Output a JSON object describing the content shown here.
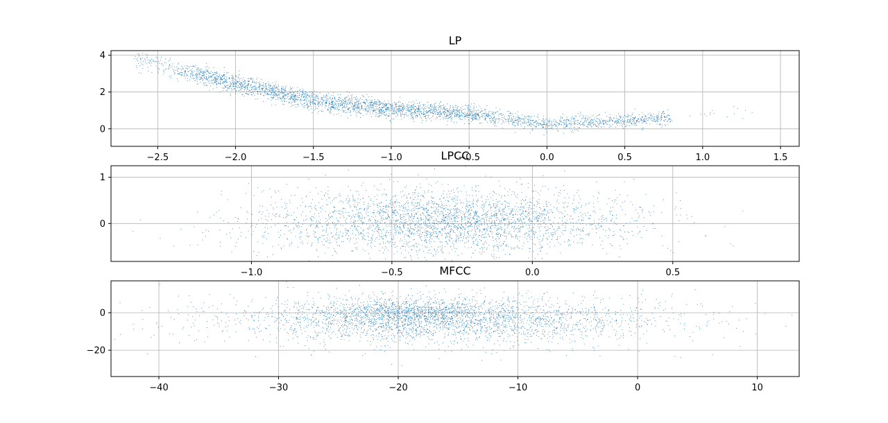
{
  "chart_data": [
    {
      "type": "scatter",
      "title": "LP",
      "xlabel": "",
      "ylabel": "",
      "xlim": [
        -2.8,
        1.62
      ],
      "ylim": [
        -0.95,
        4.25
      ],
      "xticks": [
        -2.5,
        -2.0,
        -1.5,
        -1.0,
        -0.5,
        0.0,
        0.5,
        1.0,
        1.5
      ],
      "xtick_labels": [
        "−2.5",
        "−2.0",
        "−1.5",
        "−1.0",
        "−0.5",
        "0.0",
        "0.5",
        "1.0",
        "1.5"
      ],
      "yticks": [
        0,
        2,
        4
      ],
      "ytick_labels": [
        "0",
        "2",
        "4"
      ],
      "grid": true,
      "marker_color": "#1f77b4",
      "point_count": 3500,
      "series": [
        {
          "name": "points",
          "description_trend": [
            [
              -2.6,
              3.7
            ],
            [
              -2.0,
              2.45
            ],
            [
              -1.5,
              1.5
            ],
            [
              -1.0,
              1.05
            ],
            [
              -0.5,
              0.85
            ],
            [
              0.0,
              0.25
            ],
            [
              0.5,
              0.45
            ],
            [
              1.2,
              0.8
            ]
          ]
        }
      ]
    },
    {
      "type": "scatter",
      "title": "LPCC",
      "xlabel": "",
      "ylabel": "",
      "xlim": [
        -1.5,
        0.95
      ],
      "ylim": [
        -0.82,
        1.25
      ],
      "xticks": [
        -1.0,
        -0.5,
        0.0,
        0.5
      ],
      "xtick_labels": [
        "−1.0",
        "−0.5",
        "0.0",
        "0.5"
      ],
      "yticks": [
        0,
        1
      ],
      "ytick_labels": [
        "0",
        "1"
      ],
      "grid": true,
      "marker_color": "#1f77b4",
      "point_count": 3200,
      "series": [
        {
          "name": "points",
          "x_center": -0.32,
          "x_spread": 0.32,
          "y_center": 0.05,
          "y_spread": 0.35
        }
      ]
    },
    {
      "type": "scatter",
      "title": "MFCC",
      "xlabel": "",
      "ylabel": "",
      "xlim": [
        -44,
        13.5
      ],
      "ylim": [
        -34,
        17
      ],
      "xticks": [
        -40,
        -30,
        -20,
        -10,
        0,
        10
      ],
      "xtick_labels": [
        "−40",
        "−30",
        "−20",
        "−10",
        "0",
        "10"
      ],
      "yticks": [
        -20,
        0
      ],
      "ytick_labels": [
        "−20",
        "0"
      ],
      "grid": true,
      "marker_color": "#1f77b4",
      "point_count": 3500,
      "series": [
        {
          "name": "points",
          "x_center": -16,
          "x_spread": 9.5,
          "y_center": -4,
          "y_spread": 6.5
        }
      ]
    }
  ]
}
